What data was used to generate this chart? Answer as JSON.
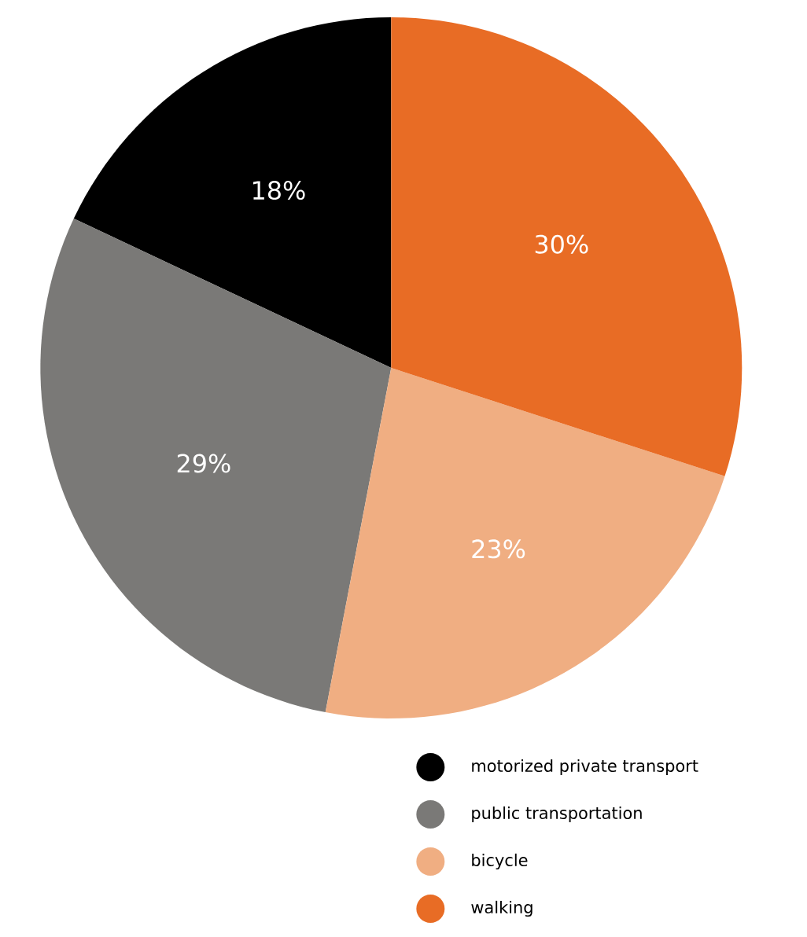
{
  "chart_data": {
    "type": "pie",
    "categories": [
      "motorized private transport",
      "public transportation",
      "bicycle",
      "walking"
    ],
    "values": [
      18,
      29,
      23,
      30
    ],
    "value_labels": [
      "18%",
      "29%",
      "23%",
      "30%"
    ],
    "colors": [
      "#000000",
      "#7a7977",
      "#f0ae82",
      "#e86c25"
    ],
    "legend": "bottom right"
  }
}
